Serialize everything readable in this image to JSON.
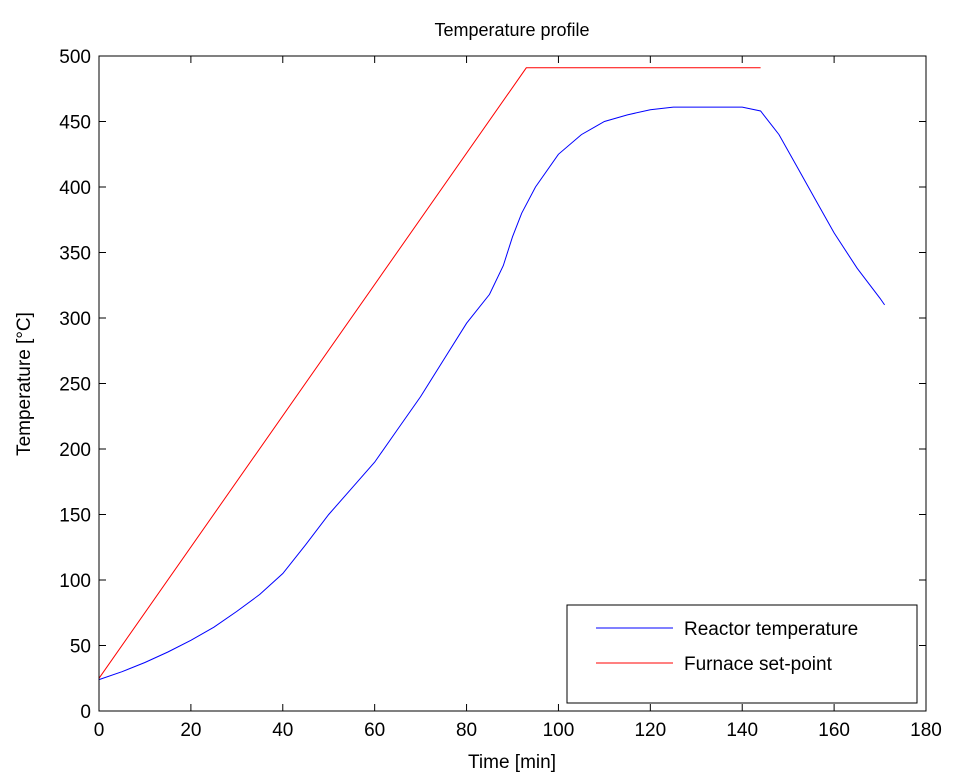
{
  "chart_data": {
    "type": "line",
    "title": "Temperature profile",
    "xlabel": "Time [min]",
    "ylabel": "Temperature [°C]",
    "xlim": [
      0,
      180
    ],
    "ylim": [
      0,
      500
    ],
    "xticks": [
      0,
      20,
      40,
      60,
      80,
      100,
      120,
      140,
      160,
      180
    ],
    "yticks": [
      0,
      50,
      100,
      150,
      200,
      250,
      300,
      350,
      400,
      450,
      500
    ],
    "grid": false,
    "legend_position": "bottom-right",
    "series": [
      {
        "name": "Reactor temperature",
        "color": "#0000ff",
        "x": [
          0,
          5,
          10,
          15,
          20,
          25,
          30,
          35,
          40,
          45,
          50,
          55,
          60,
          65,
          70,
          75,
          80,
          85,
          88,
          90,
          92,
          95,
          100,
          105,
          110,
          115,
          120,
          125,
          130,
          135,
          140,
          144,
          148,
          152,
          156,
          160,
          165,
          170,
          171
        ],
        "values": [
          24,
          30,
          37,
          45,
          54,
          64,
          76,
          89,
          105,
          127,
          150,
          170,
          190,
          215,
          240,
          268,
          296,
          318,
          340,
          362,
          380,
          400,
          425,
          440,
          450,
          455,
          459,
          461,
          461,
          461,
          461,
          458,
          440,
          415,
          390,
          365,
          338,
          315,
          310
        ]
      },
      {
        "name": "Furnace set-point",
        "color": "#ff0000",
        "x": [
          0,
          93,
          144
        ],
        "values": [
          25,
          491,
          491
        ]
      }
    ]
  }
}
